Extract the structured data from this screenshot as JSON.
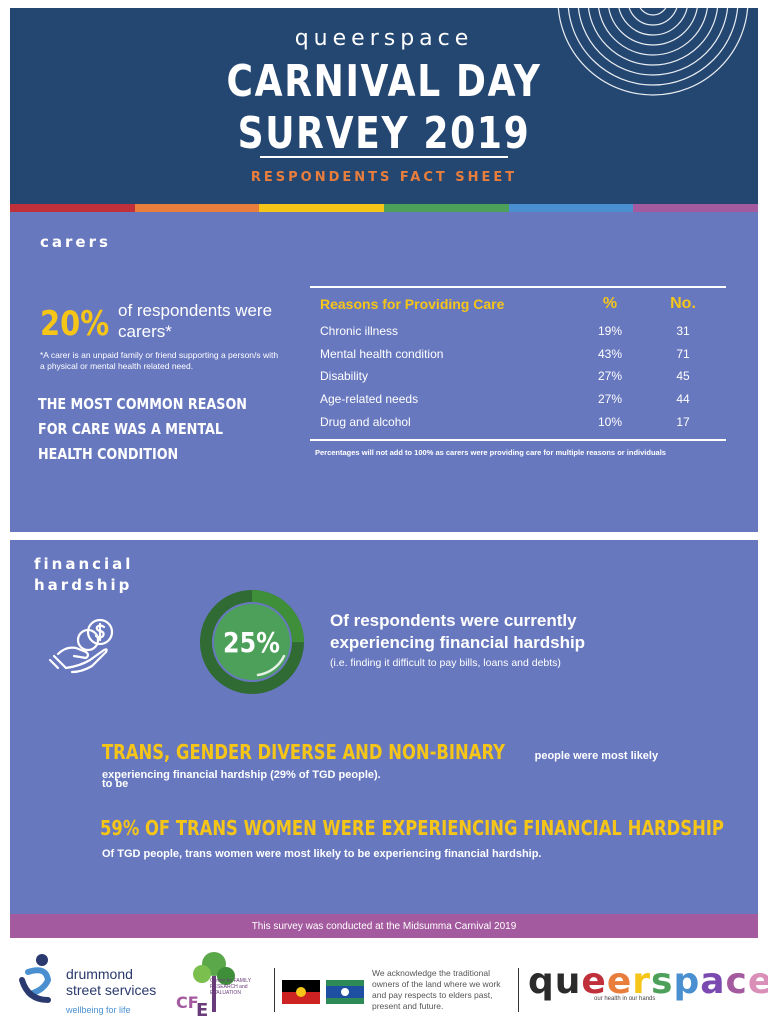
{
  "header": {
    "brand": "queerspace",
    "title_line1": "CARNIVAL DAY",
    "title_line2": "SURVEY 2019",
    "subtitle": "RESPONDENTS FACT SHEET"
  },
  "colors": {
    "header_bg": "#244772",
    "panel_bg": "#6878bf",
    "highlight": "#f5c518",
    "subtitle": "#e87d3c",
    "footer_bar": "#a35a9e",
    "rainbow": [
      "#c0303a",
      "#e87d3c",
      "#f5c518",
      "#4ca05a",
      "#4a90d0",
      "#a35a9e"
    ]
  },
  "carers": {
    "section_label": "carers",
    "percent": "20%",
    "percent_text": "of respondents were carers*",
    "footnote": "*A carer is an unpaid family or friend supporting a person/s with a physical or mental health related need.",
    "callout": "THE MOST COMMON REASON FOR CARE WAS A MENTAL HEALTH CONDITION",
    "table": {
      "headers": [
        "Reasons for Providing Care",
        "%",
        "No."
      ],
      "rows": [
        {
          "reason": "Chronic illness",
          "pct": "19%",
          "no": "31"
        },
        {
          "reason": "Mental health condition",
          "pct": "43%",
          "no": "71"
        },
        {
          "reason": "Disability",
          "pct": "27%",
          "no": "45"
        },
        {
          "reason": "Age-related needs",
          "pct": "27%",
          "no": "44"
        },
        {
          "reason": "Drug and alcohol",
          "pct": "10%",
          "no": "17"
        }
      ],
      "note": "Percentages will not add to 100% as carers were providing care for multiple reasons or individuals"
    }
  },
  "hardship": {
    "label_line1": "financial",
    "label_line2": "hardship",
    "icon": "hand-coin-icon",
    "percent": "25%",
    "percent_value": 25,
    "heading": "Of respondents were currently experiencing financial hardship",
    "subtext": "(i.e. finding it difficult to pay bills, loans and debts)",
    "tgd_highlight": "TRANS, GENDER DIVERSE AND NON-BINARY",
    "tgd_text_1": "people were most likely to be",
    "tgd_text_2": "experiencing financial hardship (29% of TGD people).",
    "trans_women_highlight": "59% OF TRANS WOMEN WERE EXPERIENCING FINANCIAL HARDSHIP",
    "trans_women_text": "Of TGD people, trans women were most likely to be experiencing financial hardship."
  },
  "footer": {
    "survey_note": "This survey was conducted at the Midsumma Carnival 2019",
    "dss_name_1": "drummond",
    "dss_name_2": "street services",
    "dss_tagline": "wellbeing for life",
    "cfre_text": "Centre for FAMILY RESEARCH and EVALUATION",
    "acknowledgement": "We acknowledge the traditional owners of the land where we work and pay respects to elders past, present and future.",
    "qs_logo": "queerspace",
    "qs_tagline": "our health in our hands"
  }
}
